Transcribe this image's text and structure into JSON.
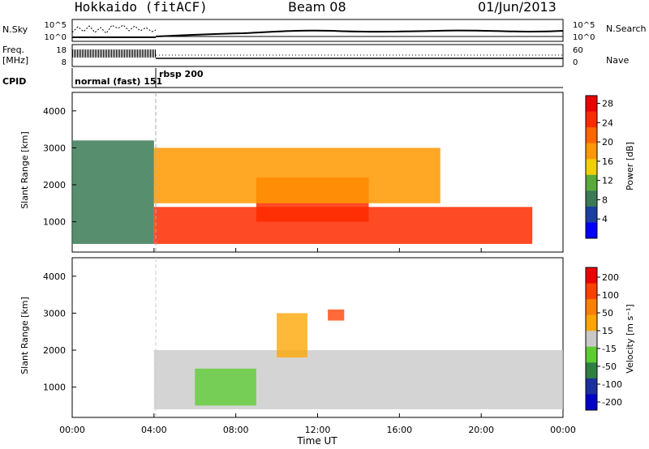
{
  "header": {
    "station": "Hokkaido (fitACF)",
    "beam": "Beam 08",
    "date": "01/Jun/2013"
  },
  "left_labels": {
    "nsky": "N.Sky",
    "freq": "Freq.",
    "freq_unit": "[MHz]",
    "cpid": "CPID"
  },
  "right_labels": {
    "nsearch": "N.Search",
    "nave": "Nave"
  },
  "strip_ticks": {
    "noise_left": [
      "10^5",
      "10^0"
    ],
    "noise_right": [
      "10^5",
      "10^0"
    ],
    "freq_left": [
      "18",
      "8"
    ],
    "nave_right": [
      "60",
      "0"
    ]
  },
  "cpid_labels": [
    "normal (fast) 151",
    "rbsp 200"
  ],
  "colors": {
    "power_scale": [
      "#0000ff",
      "#1a3fa0",
      "#3a7a55",
      "#5aaa3a",
      "#f0d000",
      "#ff9900",
      "#ff6600",
      "#ff2a00",
      "#ee0000"
    ],
    "velocity_scale": [
      "#0000cc",
      "#1a2fa0",
      "#2f8040",
      "#5ccc33",
      "#c8c8c8",
      "#ffa500",
      "#ff7f00",
      "#ff4000",
      "#ee0000"
    ]
  },
  "chart_data": [
    {
      "type": "heatmap",
      "title": "",
      "xlabel": "",
      "ylabel": "Slant Range [km]",
      "x_range": [
        "00:00",
        "00:00"
      ],
      "x_ticks": [
        "00:00",
        "04:00",
        "08:00",
        "12:00",
        "16:00",
        "20:00",
        "00:00"
      ],
      "y_ticks": [
        "1000",
        "2000",
        "3000",
        "4000"
      ],
      "ylim": [
        180,
        4500
      ],
      "colorbar": {
        "label": "Power [dB]",
        "ticks": [
          "4",
          "8",
          "12",
          "16",
          "20",
          "24",
          "28"
        ],
        "range": [
          0,
          30
        ]
      },
      "description_regions": [
        {
          "t_start": 0,
          "t_end": 4,
          "range_start": 400,
          "range_end": 3200,
          "value": 8
        },
        {
          "t_start": 4,
          "t_end": 22.5,
          "range_start": 400,
          "range_end": 1400,
          "value": 27
        },
        {
          "t_start": 9,
          "t_end": 14.5,
          "range_start": 1000,
          "range_end": 2200,
          "value": 25
        },
        {
          "t_start": 4,
          "t_end": 18,
          "range_start": 1500,
          "range_end": 3000,
          "value": 18
        }
      ]
    },
    {
      "type": "heatmap",
      "title": "",
      "xlabel": "Time UT",
      "ylabel": "Slant Range [km]",
      "x_range": [
        "00:00",
        "00:00"
      ],
      "x_ticks": [
        "00:00",
        "04:00",
        "08:00",
        "12:00",
        "16:00",
        "20:00",
        "00:00"
      ],
      "y_ticks": [
        "1000",
        "2000",
        "3000",
        "4000"
      ],
      "ylim": [
        180,
        4500
      ],
      "colorbar": {
        "label": "Velocity [m s⁻¹]",
        "ticks": [
          "200",
          "100",
          "50",
          "15",
          "-15",
          "-50",
          "-100",
          "-200"
        ],
        "range": [
          -250,
          250
        ]
      },
      "description_regions": [
        {
          "t_start": 4,
          "t_end": 24,
          "range_start": 400,
          "range_end": 2000,
          "value": 0
        },
        {
          "t_start": 10,
          "t_end": 11.5,
          "range_start": 1800,
          "range_end": 3000,
          "value": 60
        },
        {
          "t_start": 12.5,
          "t_end": 13.3,
          "range_start": 2800,
          "range_end": 3100,
          "value": 200
        },
        {
          "t_start": 6,
          "t_end": 9,
          "range_start": 500,
          "range_end": 1500,
          "value": -60
        }
      ]
    }
  ]
}
